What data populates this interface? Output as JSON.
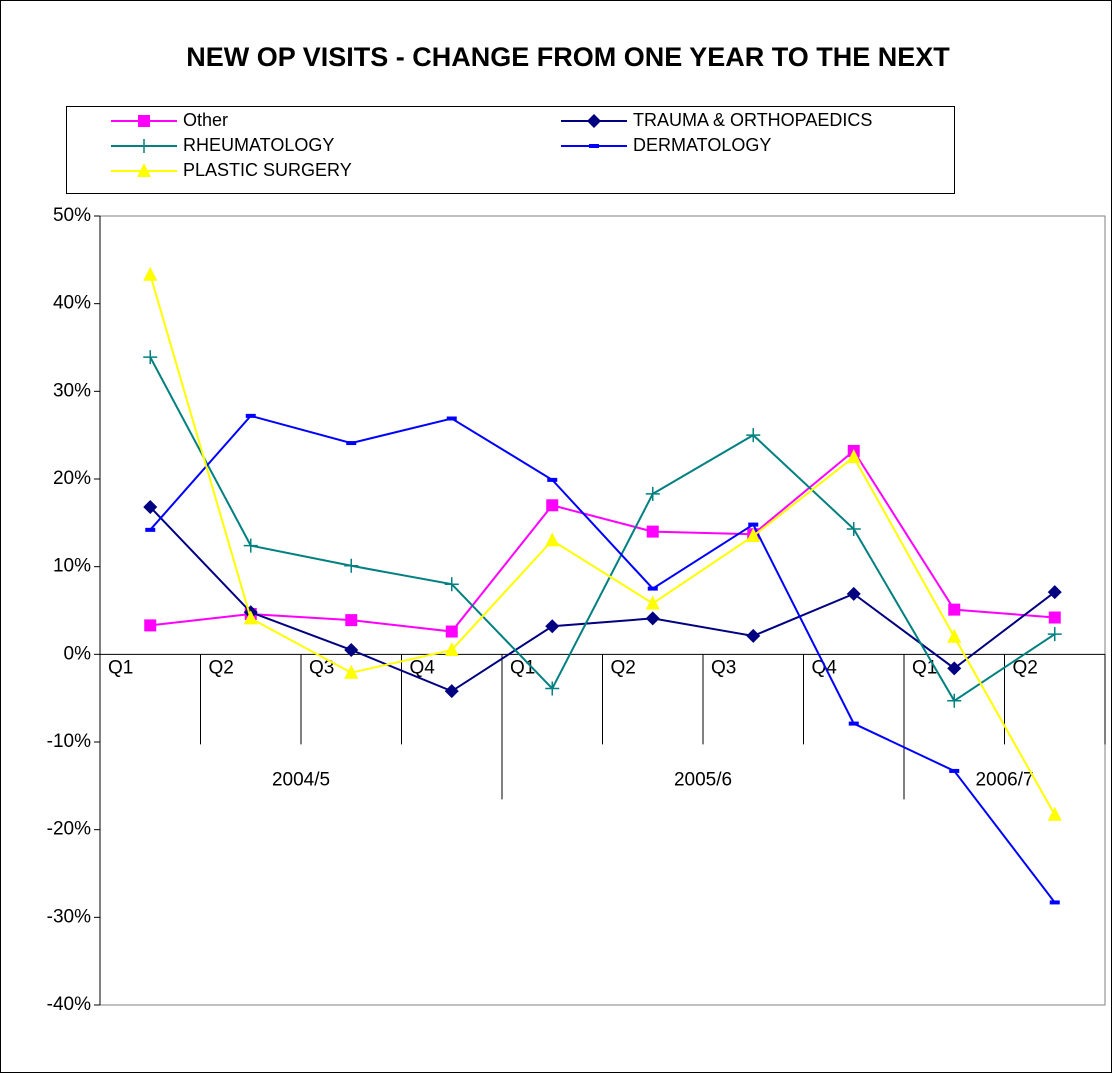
{
  "chart_data": {
    "type": "line",
    "title": "NEW OP VISITS - CHANGE FROM ONE YEAR TO THE NEXT",
    "categories": [
      "Q1",
      "Q2",
      "Q3",
      "Q4",
      "Q1",
      "Q2",
      "Q3",
      "Q4",
      "Q1",
      "Q2"
    ],
    "groups": [
      {
        "label": "2004/5",
        "count": 4
      },
      {
        "label": "2005/6",
        "count": 4
      },
      {
        "label": "2006/7",
        "count": 2
      }
    ],
    "ylim": [
      -40,
      50
    ],
    "yticks": [
      {
        "value": -40,
        "label": "-40%"
      },
      {
        "value": -30,
        "label": "-30%"
      },
      {
        "value": -20,
        "label": "-20%"
      },
      {
        "value": -10,
        "label": "-10%"
      },
      {
        "value": 0,
        "label": "0%"
      },
      {
        "value": 10,
        "label": "10%"
      },
      {
        "value": 20,
        "label": "20%"
      },
      {
        "value": 30,
        "label": "30%"
      },
      {
        "value": 40,
        "label": "40%"
      },
      {
        "value": 50,
        "label": "50%"
      }
    ],
    "grid": false,
    "series": [
      {
        "name": "Other",
        "color": "#ff00ff",
        "marker": "square",
        "values": [
          3.3,
          4.6,
          3.9,
          2.6,
          17.0,
          14.0,
          13.7,
          23.2,
          5.1,
          4.2
        ]
      },
      {
        "name": "TRAUMA & ORTHOPAEDICS",
        "color": "#000080",
        "marker": "diamond",
        "values": [
          16.8,
          4.8,
          0.5,
          -4.2,
          3.2,
          4.1,
          2.1,
          6.9,
          -1.6,
          7.1
        ]
      },
      {
        "name": "RHEUMATOLOGY",
        "color": "#008080",
        "marker": "plus",
        "values": [
          33.9,
          12.4,
          10.1,
          8.0,
          -3.9,
          18.3,
          25.0,
          14.3,
          -5.3,
          2.3
        ]
      },
      {
        "name": "DERMATOLOGY",
        "color": "#0000ff",
        "marker": "dash",
        "values": [
          14.2,
          27.2,
          24.1,
          26.9,
          19.9,
          7.5,
          14.8,
          -7.9,
          -13.3,
          -28.3
        ]
      },
      {
        "name": "PLASTIC SURGERY",
        "color": "#ffff00",
        "marker": "triangle",
        "values": [
          43.3,
          4.1,
          -2.1,
          0.5,
          13.0,
          5.8,
          13.5,
          22.5,
          2.0,
          -18.3
        ]
      }
    ]
  }
}
